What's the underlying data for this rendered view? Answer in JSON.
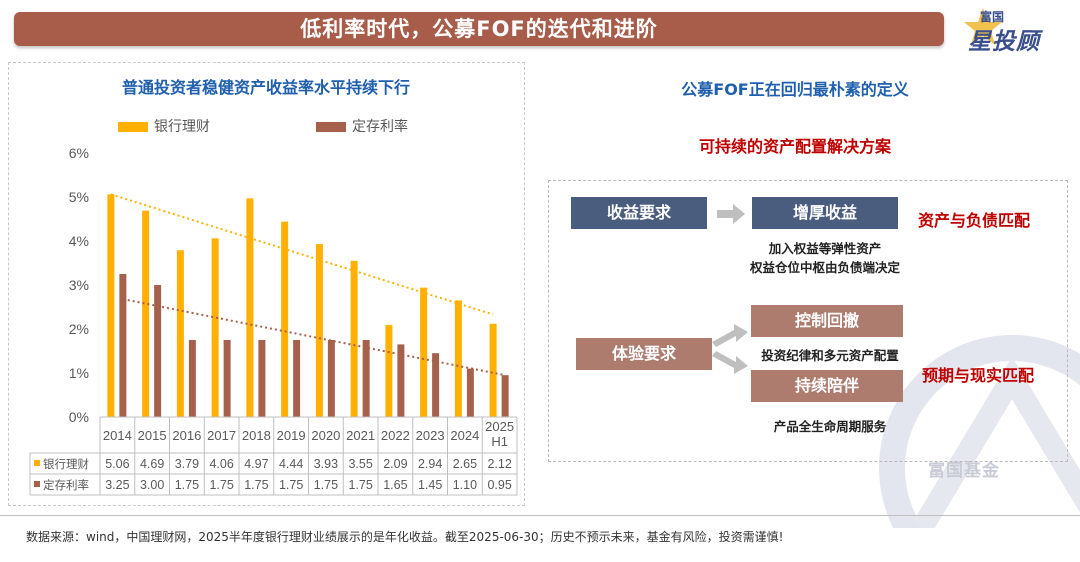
{
  "header": {
    "title": "低利率时代，公募FOF的迭代和进阶"
  },
  "logo": {
    "top": "富国",
    "main": "星投顾"
  },
  "chart_data": {
    "type": "bar",
    "title": "普通投资者稳健资产收益率水平持续下行",
    "categories": [
      "2014",
      "2015",
      "2016",
      "2017",
      "2018",
      "2019",
      "2020",
      "2021",
      "2022",
      "2023",
      "2024",
      "2025\nH1"
    ],
    "series": [
      {
        "name": "银行理财",
        "values": [
          5.06,
          4.69,
          3.79,
          4.06,
          4.97,
          4.44,
          3.93,
          3.55,
          2.09,
          2.94,
          2.65,
          2.12
        ],
        "display": [
          "5.06",
          "4.69",
          "3.79",
          "4.06",
          "4.97",
          "4.44",
          "3.93",
          "3.55",
          "2.09",
          "2.94",
          "2.65",
          "2.12"
        ],
        "color": "#ffb000"
      },
      {
        "name": "定存利率",
        "values": [
          3.25,
          3.0,
          1.75,
          1.75,
          1.75,
          1.75,
          1.75,
          1.75,
          1.65,
          1.45,
          1.1,
          0.95
        ],
        "display": [
          "3.25",
          "3.00",
          "1.75",
          "1.75",
          "1.75",
          "1.75",
          "1.75",
          "1.75",
          "1.65",
          "1.45",
          "1.10",
          "0.95"
        ],
        "color": "#a5614b"
      }
    ],
    "trendlines": [
      {
        "series": "银行理财",
        "from": 5.06,
        "to": 2.33,
        "color": "#ffb000"
      },
      {
        "series": "定存利率",
        "from": 2.68,
        "to": 0.95,
        "color": "#a5614b"
      }
    ],
    "ylim": [
      0,
      6
    ],
    "yticks": [
      "0%",
      "1%",
      "2%",
      "3%",
      "4%",
      "5%",
      "6%"
    ],
    "legend": "top",
    "data_table": true
  },
  "right": {
    "title": "公募FOF正在回归最朴素的定义",
    "subtitle": "可持续的资产配置解决方案",
    "income_req": "收益要求",
    "boost": "增厚收益",
    "boost_note1": "加入权益等弹性资产",
    "boost_note2": "权益仓位中枢由负债端决定",
    "match1": "资产与负债匹配",
    "exp_req": "体验要求",
    "control": "控制回撤",
    "control_note": "投资纪律和多元资产配置",
    "companion": "持续陪伴",
    "companion_note": "产品全生命周期服务",
    "match2": "预期与现实匹配"
  },
  "watermark": "富国基金",
  "footer": "数据来源：wind，中国理财网，2025半年度银行理财业绩展示的是年化收益。截至2025-06-30；历史不预示未来，基金有风险，投资需谨慎!",
  "colors": {
    "title_bg": "#a85c4a",
    "blue_block": "#4a5d7e",
    "brown_block": "#ad7c6f",
    "accent_red": "#c00000",
    "accent_blue": "#1f5fad"
  }
}
